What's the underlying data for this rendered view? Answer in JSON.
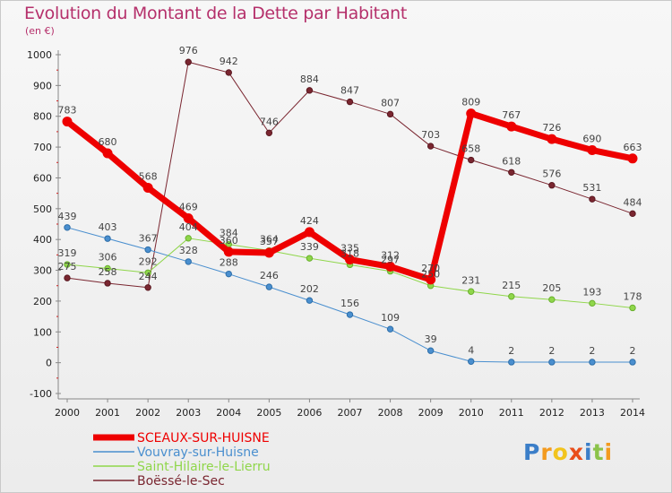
{
  "chart_data": {
    "type": "line",
    "title": "Evolution du Montant de la Dette par Habitant",
    "subtitle": "(en €)",
    "x": [
      "2000",
      "2001",
      "2002",
      "2003",
      "2004",
      "2005",
      "2006",
      "2007",
      "2008",
      "2009",
      "2010",
      "2011",
      "2012",
      "2013",
      "2014"
    ],
    "ylim": [
      -100,
      1000
    ],
    "yticks": [
      -100,
      0,
      100,
      200,
      300,
      400,
      500,
      600,
      700,
      800,
      900,
      1000
    ],
    "grid": false,
    "legend_position": "bottom-left",
    "series": [
      {
        "name": "SCEAUX-SUR-HUISNE",
        "color": "#ee0000",
        "values": [
          783,
          680,
          568,
          469,
          360,
          357,
          424,
          335,
          312,
          270,
          809,
          767,
          726,
          690,
          663
        ]
      },
      {
        "name": "Vouvray-sur-Huisne",
        "color": "#4a8fcf",
        "values": [
          439,
          403,
          367,
          328,
          288,
          246,
          202,
          156,
          109,
          39,
          4,
          2,
          2,
          2,
          2
        ]
      },
      {
        "name": "Saint-Hilaire-le-Lierru",
        "color": "#8fd64a",
        "values": [
          319,
          306,
          292,
          404,
          384,
          364,
          339,
          318,
          297,
          250,
          231,
          215,
          205,
          193,
          178
        ]
      },
      {
        "name": "Boëssé-le-Sec",
        "color": "#7a2630",
        "values": [
          275,
          258,
          244,
          976,
          942,
          746,
          884,
          847,
          807,
          703,
          658,
          618,
          576,
          531,
          484
        ]
      }
    ]
  },
  "logo": {
    "text": "Proxiti",
    "letters": [
      "P",
      "r",
      "o",
      "x",
      "i",
      "t",
      "i"
    ]
  }
}
